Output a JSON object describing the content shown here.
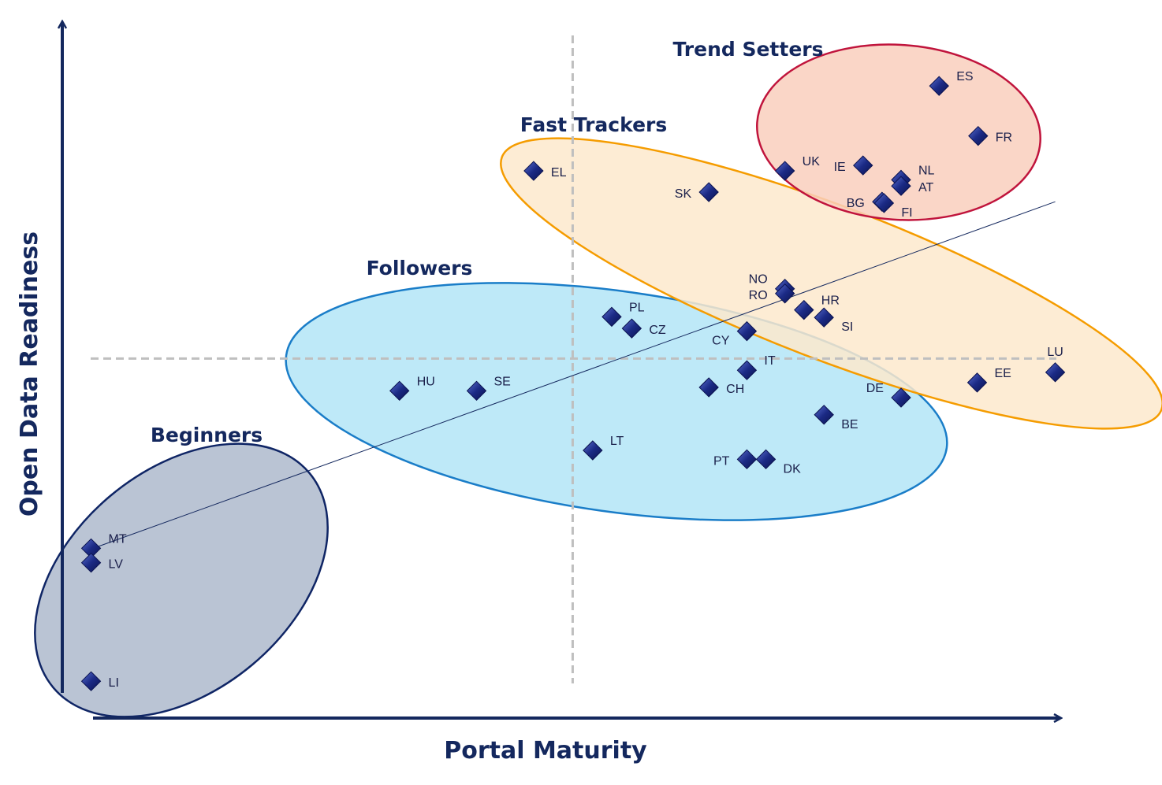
{
  "chart_data": {
    "type": "scatter",
    "title": "",
    "xlabel": "Portal Maturity",
    "ylabel": "Open Data Readiness",
    "xlim": [
      0,
      100
    ],
    "ylim": [
      0,
      100
    ],
    "grid": false,
    "reference_lines": {
      "x_divider": 50.9,
      "y_divider": 51.1
    },
    "trend_line": {
      "start": [
        2.8,
        23.3
      ],
      "end": [
        99.1,
        74.0
      ]
    },
    "groups": [
      {
        "name": "Beginners",
        "fill": "#aebacd",
        "stroke": "#0f2565",
        "members": [
          "MT",
          "LV",
          "LI"
        ]
      },
      {
        "name": "Followers",
        "fill": "#b3e5f7",
        "stroke": "#1a7dc8",
        "members": [
          "HU",
          "SE",
          "PL",
          "CZ",
          "LT",
          "CY",
          "IT",
          "CH",
          "PT",
          "DK",
          "BE",
          "DE"
        ]
      },
      {
        "name": "Fast Trackers",
        "fill": "#fde9cc",
        "stroke": "#f59c00",
        "members": [
          "EL",
          "SK",
          "NO",
          "RO",
          "HR",
          "SI",
          "EE",
          "LU"
        ]
      },
      {
        "name": "Trend Setters",
        "fill": "#f9cfbd",
        "stroke": "#c0143c",
        "members": [
          "ES",
          "FR",
          "UK",
          "IE",
          "NL",
          "AT",
          "BG",
          "FI"
        ]
      }
    ],
    "points": [
      {
        "label": "ES",
        "x": 87.5,
        "y": 90.9
      },
      {
        "label": "FR",
        "x": 91.4,
        "y": 83.6
      },
      {
        "label": "UK",
        "x": 72.1,
        "y": 78.5
      },
      {
        "label": "IE",
        "x": 79.9,
        "y": 79.3
      },
      {
        "label": "NL",
        "x": 83.7,
        "y": 77.2
      },
      {
        "label": "AT",
        "x": 83.7,
        "y": 76.3
      },
      {
        "label": "BG",
        "x": 81.8,
        "y": 74.0
      },
      {
        "label": "FI",
        "x": 82.0,
        "y": 73.8
      },
      {
        "label": "EL",
        "x": 47.0,
        "y": 78.5
      },
      {
        "label": "SK",
        "x": 64.5,
        "y": 75.4
      },
      {
        "label": "NO",
        "x": 72.1,
        "y": 61.3
      },
      {
        "label": "RO",
        "x": 72.1,
        "y": 60.6
      },
      {
        "label": "HR",
        "x": 74.0,
        "y": 58.2
      },
      {
        "label": "SI",
        "x": 76.0,
        "y": 57.1
      },
      {
        "label": "CY",
        "x": 68.3,
        "y": 55.1
      },
      {
        "label": "LU",
        "x": 99.1,
        "y": 49.1
      },
      {
        "label": "EE",
        "x": 91.3,
        "y": 47.6
      },
      {
        "label": "PL",
        "x": 54.8,
        "y": 57.2
      },
      {
        "label": "CZ",
        "x": 56.8,
        "y": 55.5
      },
      {
        "label": "HU",
        "x": 33.6,
        "y": 46.4
      },
      {
        "label": "SE",
        "x": 41.3,
        "y": 46.4
      },
      {
        "label": "IT",
        "x": 68.3,
        "y": 49.4
      },
      {
        "label": "CH",
        "x": 64.5,
        "y": 46.9
      },
      {
        "label": "DE",
        "x": 83.7,
        "y": 45.4
      },
      {
        "label": "BE",
        "x": 76.0,
        "y": 42.9
      },
      {
        "label": "LT",
        "x": 52.9,
        "y": 37.7
      },
      {
        "label": "PT",
        "x": 68.3,
        "y": 36.4
      },
      {
        "label": "DK",
        "x": 70.2,
        "y": 36.4
      },
      {
        "label": "MT",
        "x": 2.8,
        "y": 23.4
      },
      {
        "label": "LV",
        "x": 2.8,
        "y": 21.3
      },
      {
        "label": "LI",
        "x": 2.8,
        "y": 4.0
      }
    ]
  }
}
